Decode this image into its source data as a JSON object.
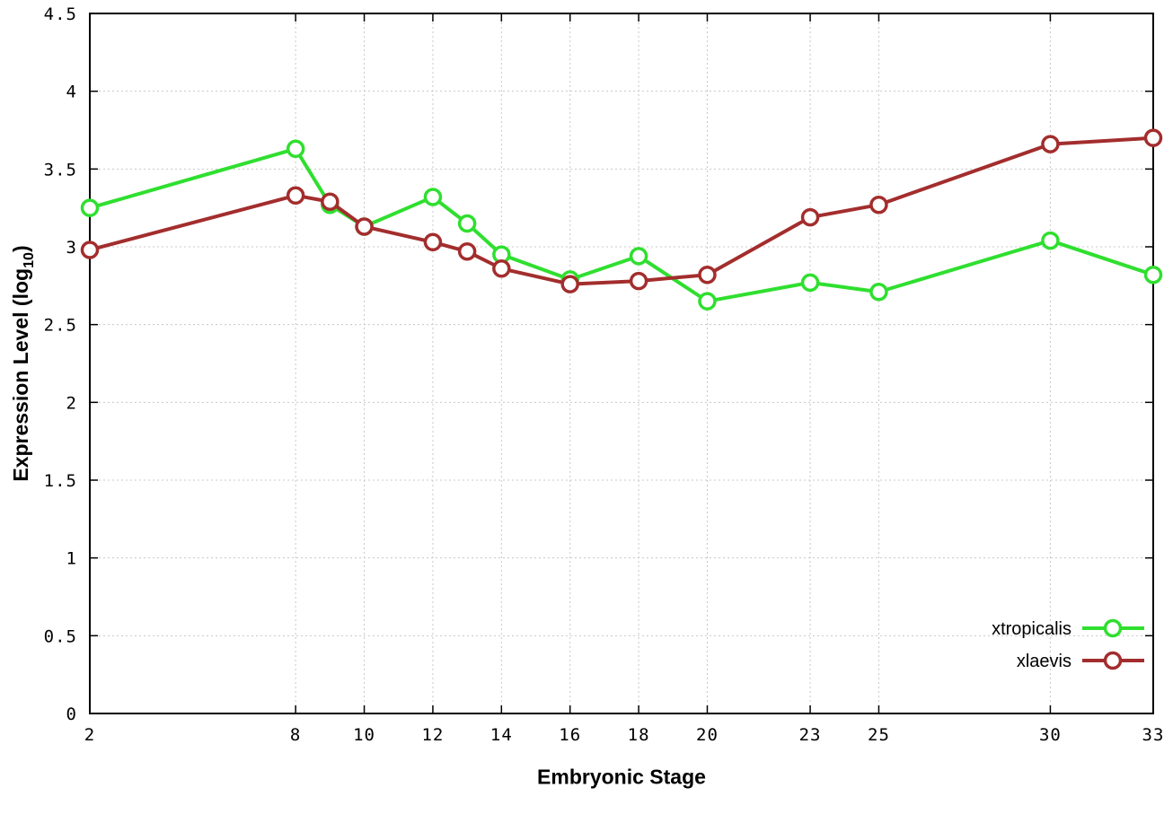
{
  "chart_data": {
    "type": "line",
    "title": "",
    "xlabel": "Embryonic Stage",
    "ylabel": {
      "pre": "Expression Level (log",
      "sub": "10",
      "post": ")"
    },
    "xlim": [
      2,
      33
    ],
    "ylim": [
      0,
      4.5
    ],
    "xticks": [
      2,
      8,
      10,
      12,
      14,
      16,
      18,
      20,
      23,
      25,
      30,
      33
    ],
    "yticks": [
      0,
      0.5,
      1,
      1.5,
      2,
      2.5,
      3,
      3.5,
      4,
      4.5
    ],
    "grid": true,
    "legend_position": "bottom-right",
    "x": [
      2,
      8,
      9,
      10,
      12,
      13,
      14,
      16,
      18,
      20,
      23,
      25,
      30,
      33
    ],
    "series": [
      {
        "name": "xtropicalis",
        "color": "#2fdf2f",
        "marker": "open-circle",
        "values": [
          3.25,
          3.63,
          3.27,
          3.13,
          3.32,
          3.15,
          2.95,
          2.79,
          2.94,
          2.65,
          2.77,
          2.71,
          3.04,
          2.82
        ]
      },
      {
        "name": "xlaevis",
        "color": "#a32d2d",
        "marker": "open-circle",
        "values": [
          2.98,
          3.33,
          3.29,
          3.13,
          3.03,
          2.97,
          2.86,
          2.76,
          2.78,
          2.82,
          3.19,
          3.27,
          3.66,
          3.7
        ]
      }
    ],
    "colors": {
      "grid": "#c8c8c8",
      "axis": "#000000",
      "background": "#ffffff",
      "marker_fill": "#ffffff"
    }
  }
}
